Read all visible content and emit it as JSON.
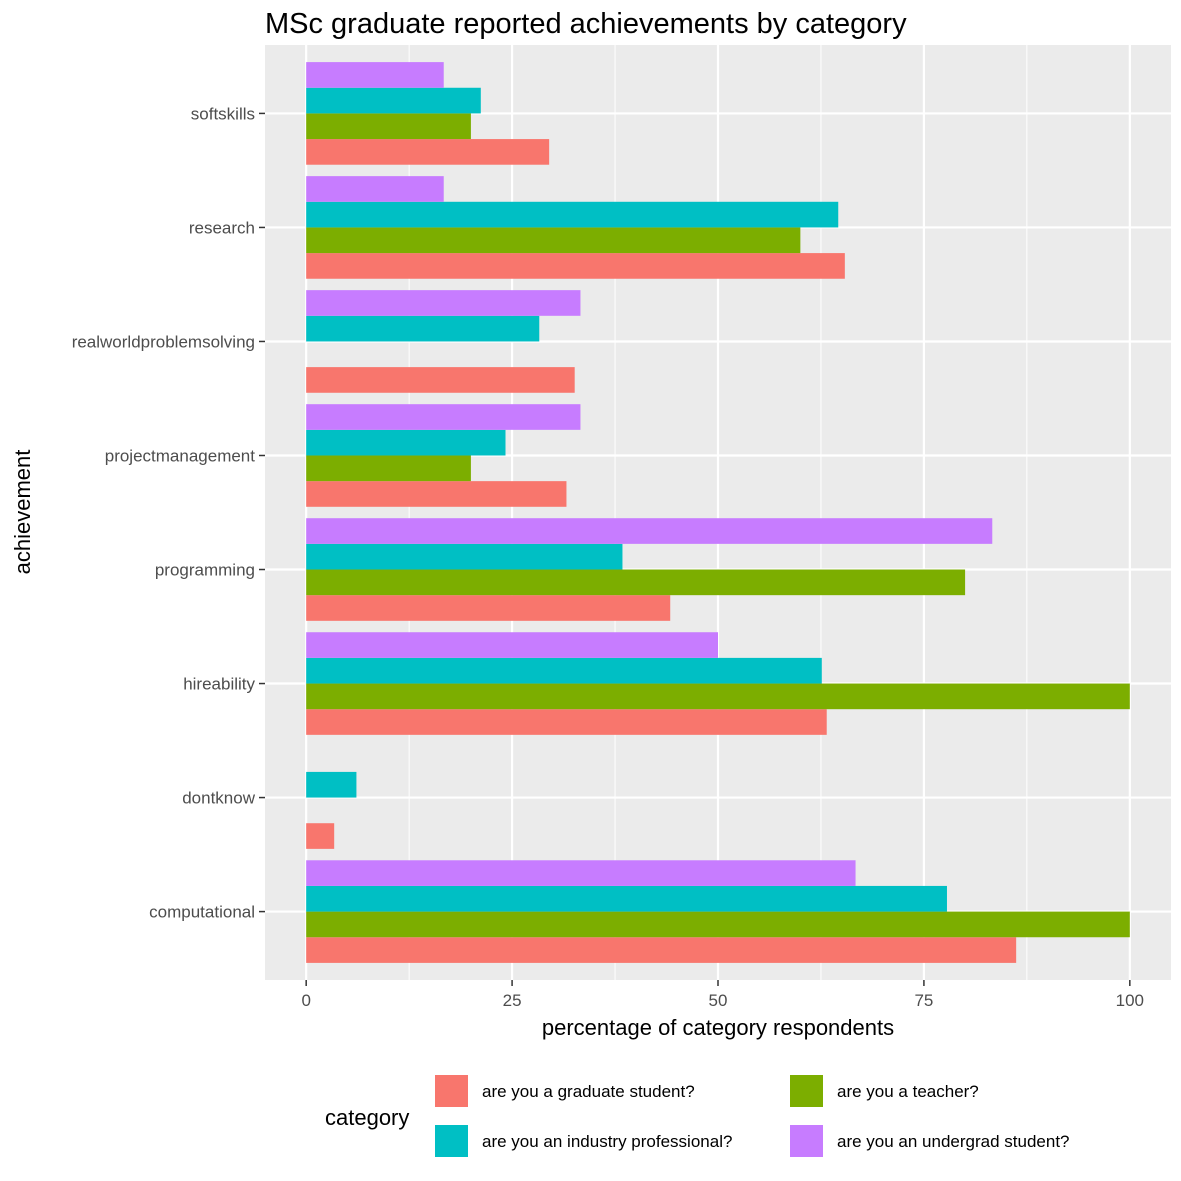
{
  "chart_data": {
    "type": "bar",
    "orientation": "horizontal",
    "title": "MSc graduate reported achievements by category",
    "xlabel": "percentage of category respondents",
    "ylabel": "achievement",
    "xlim": [
      -5,
      105
    ],
    "xticks": [
      0,
      25,
      50,
      75,
      100
    ],
    "xtick_labels": [
      "0",
      "25",
      "50",
      "75",
      "100"
    ],
    "categories": [
      "computational",
      "dontknow",
      "hireability",
      "programming",
      "projectmanagement",
      "realworldproblemsolving",
      "research",
      "softskills"
    ],
    "series": [
      {
        "name": "are you a graduate student?",
        "color": "#F8766D",
        "values": [
          86.2,
          3.4,
          63.2,
          44.2,
          31.6,
          32.6,
          65.4,
          29.5
        ]
      },
      {
        "name": "are you a teacher?",
        "color": "#7CAE00",
        "values": [
          100,
          null,
          100,
          80,
          20,
          null,
          60,
          20
        ]
      },
      {
        "name": "are you an industry professional?",
        "color": "#00BFC4",
        "values": [
          77.8,
          6.1,
          62.6,
          38.4,
          24.2,
          28.3,
          64.6,
          21.2
        ]
      },
      {
        "name": "are you an undergrad student?",
        "color": "#C77CFF",
        "values": [
          66.7,
          null,
          50,
          83.3,
          33.3,
          33.3,
          16.7,
          16.7
        ]
      }
    ],
    "grid": true,
    "legend": {
      "title": "category",
      "position": "bottom",
      "entries": [
        "are you a graduate student?",
        "are you a teacher?",
        "are you an industry professional?",
        "are you an undergrad student?"
      ]
    }
  }
}
